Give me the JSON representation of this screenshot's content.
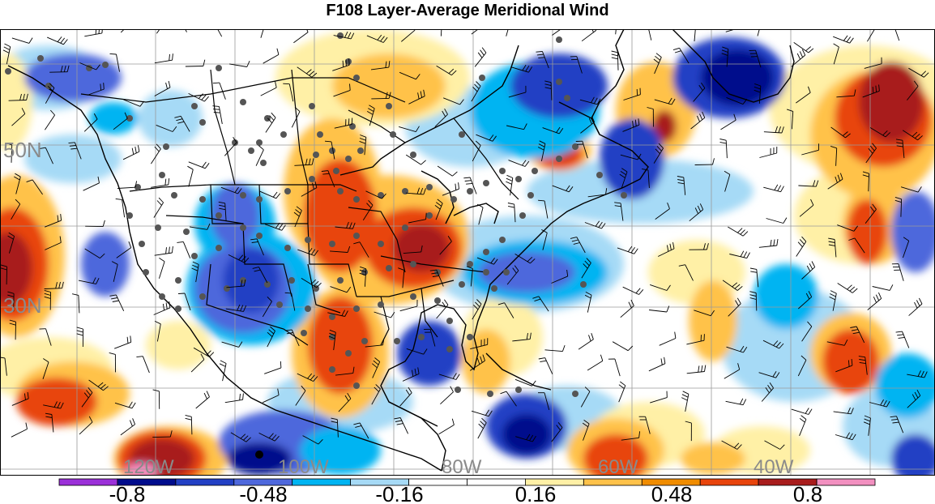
{
  "title": "F108 Layer-Average Meridional Wind",
  "map": {
    "lat_labels": [
      "50N",
      "30N"
    ],
    "lon_labels": [
      "120W",
      "100W",
      "80W",
      "60W",
      "40W"
    ]
  },
  "colorbar": {
    "colors": [
      "#9b30d8",
      "#000c8c",
      "#2240c4",
      "#4e68dc",
      "#00b4f2",
      "#a6daf6",
      "#ffffff",
      "#ffffff",
      "#fff0a6",
      "#ffc24a",
      "#f08c00",
      "#e8440c",
      "#a81c1c",
      "#f290c0"
    ],
    "tick_labels": [
      "-0.8",
      "-0.48",
      "-0.16",
      "0.16",
      "0.48",
      "0.8"
    ]
  },
  "chart_data": {
    "type": "heatmap",
    "title": "F108 Layer-Average Meridional Wind",
    "legend_placement": "bottom",
    "colorbar_levels": [
      -0.96,
      -0.8,
      -0.64,
      -0.48,
      -0.32,
      -0.16,
      0,
      0.16,
      0.32,
      0.48,
      0.64,
      0.8,
      0.96
    ],
    "colorbar_tick_labels": [
      "-0.8",
      "-0.48",
      "-0.16",
      "0.16",
      "0.48",
      "0.8"
    ],
    "lat_labels": [
      "50N",
      "30N"
    ],
    "lon_labels": [
      "120W",
      "100W",
      "80W",
      "60W",
      "40W"
    ],
    "grid": true
  }
}
